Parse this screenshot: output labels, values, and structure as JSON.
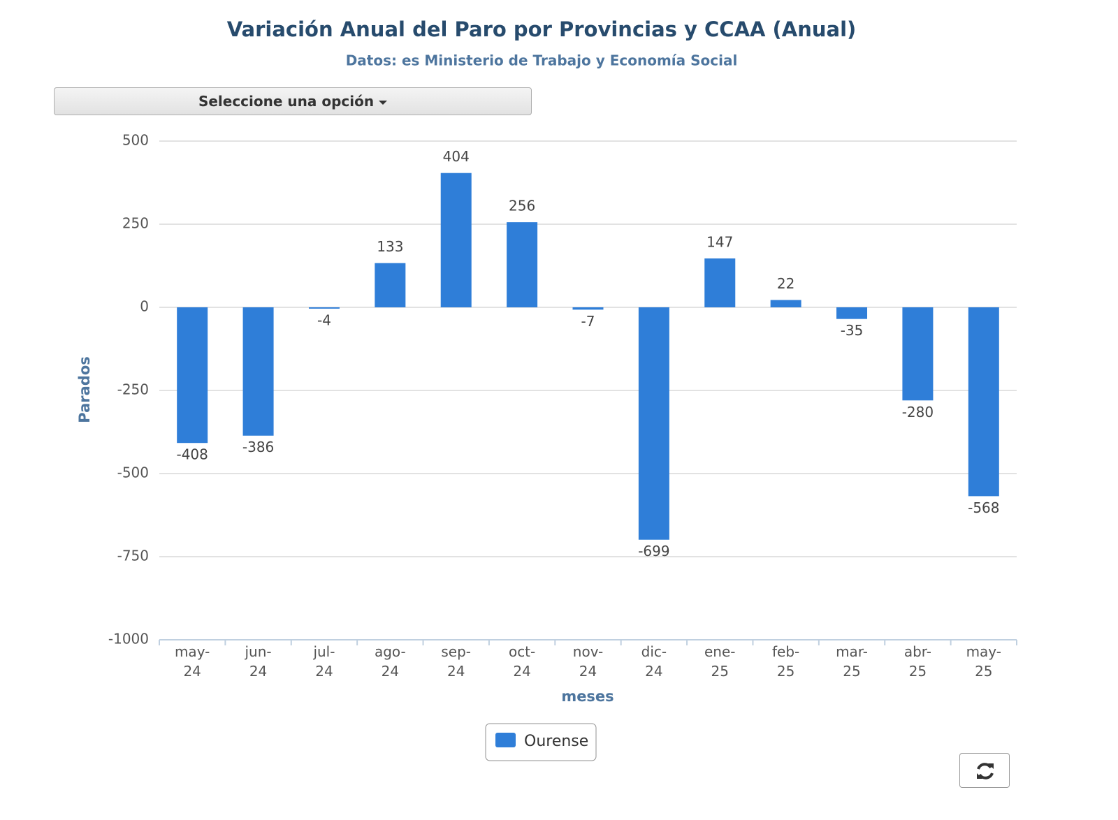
{
  "chart_data": {
    "type": "bar",
    "title": "Variación Anual del Paro por Provincias y CCAA (Anual)",
    "subtitle": "Datos: es Ministerio de Trabajo y Economía Social",
    "dropdown": "Seleccione una opción",
    "y_label": "Parados",
    "x_label": "meses",
    "categories": [
      "may-\n24",
      "jun-\n24",
      "jul-\n24",
      "ago-\n24",
      "sep-\n24",
      "oct-\n24",
      "nov-\n24",
      "dic-\n24",
      "ene-\n25",
      "feb-\n25",
      "mar-\n25",
      "abr-\n25",
      "may-\n25"
    ],
    "series": [
      {
        "name": "Ourense",
        "color": "#2f7ed8",
        "values": [
          -408,
          -386,
          -4,
          133,
          404,
          256,
          -7,
          -699,
          147,
          22,
          -35,
          -280,
          -568
        ]
      }
    ],
    "ylim": [
      -1000,
      500
    ],
    "yticks": [
      -1000,
      -750,
      -500,
      -250,
      0,
      250,
      500
    ],
    "grid": true
  }
}
